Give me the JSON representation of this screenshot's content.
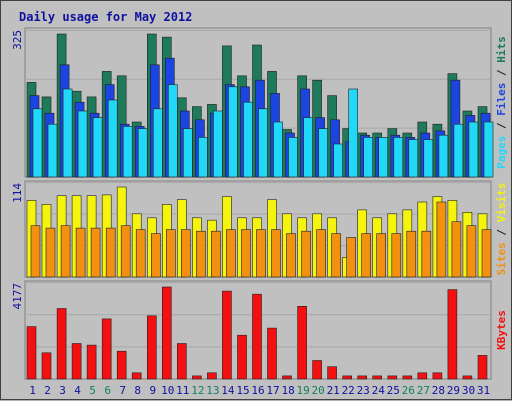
{
  "chart_data": {
    "type": "bar",
    "title": "Daily usage for May 2012",
    "categories": [
      "1",
      "2",
      "3",
      "4",
      "5",
      "6",
      "7",
      "8",
      "9",
      "10",
      "11",
      "12",
      "13",
      "14",
      "15",
      "16",
      "17",
      "18",
      "19",
      "20",
      "21",
      "22",
      "23",
      "24",
      "25",
      "26",
      "27",
      "28",
      "29",
      "30",
      "31"
    ],
    "weekend_days": [
      "5",
      "6",
      "12",
      "13",
      "19",
      "20",
      "26",
      "27"
    ],
    "panels": [
      {
        "name": "hits-files-pages",
        "ymax_label": "325",
        "ymax": 325,
        "legend": [
          "Pages",
          "Files",
          "Hits"
        ],
        "series": [
          {
            "name": "Hits",
            "color": "#1e7a5a",
            "values": [
              215,
              182,
              325,
              195,
              182,
              240,
              230,
              125,
              325,
              318,
              180,
              160,
              165,
              298,
              230,
              300,
              240,
              108,
              230,
              220,
              185,
              110,
              100,
              100,
              110,
              100,
              125,
              120,
              235,
              150,
              160
            ]
          },
          {
            "name": "Files",
            "color": "#1c44e0",
            "values": [
              185,
              145,
              255,
              170,
              145,
              210,
              120,
              115,
              255,
              270,
              150,
              130,
              145,
              210,
              205,
              220,
              190,
              100,
              200,
              135,
              130,
              80,
              95,
              90,
              95,
              90,
              100,
              105,
              220,
              140,
              145
            ]
          },
          {
            "name": "Pages",
            "color": "#22d8f8",
            "values": [
              155,
              120,
              200,
              150,
              135,
              175,
              115,
              110,
              155,
              210,
              110,
              90,
              150,
              205,
              170,
              155,
              125,
              90,
              135,
              110,
              75,
              200,
              90,
              90,
              90,
              85,
              85,
              95,
              120,
              125,
              125
            ]
          }
        ]
      },
      {
        "name": "visits-sites",
        "ymax_label": "114",
        "ymax": 114,
        "legend": [
          "Sites",
          "Visits"
        ],
        "series": [
          {
            "name": "Visits",
            "color": "#f4f40c",
            "values": [
              97,
              92,
              103,
              103,
              103,
              104,
              114,
              80,
              75,
              92,
              98,
              75,
              72,
              102,
              75,
              75,
              98,
              80,
              75,
              80,
              75,
              25,
              85,
              75,
              80,
              85,
              95,
              102,
              97,
              82,
              80
            ]
          },
          {
            "name": "Sites",
            "color": "#f49010",
            "values": [
              65,
              62,
              65,
              62,
              62,
              62,
              65,
              60,
              55,
              60,
              60,
              58,
              58,
              60,
              60,
              60,
              60,
              55,
              58,
              60,
              55,
              50,
              55,
              55,
              55,
              58,
              58,
              95,
              70,
              65,
              60
            ]
          }
        ]
      },
      {
        "name": "kbytes",
        "ymax_label": "4177",
        "ymax": 4177,
        "legend": [
          "KBytes"
        ],
        "series": [
          {
            "name": "KBytes",
            "color": "#f41010",
            "values": [
              2380,
              1190,
              3200,
              1610,
              1540,
              2730,
              1260,
              280,
              2870,
              4177,
              1610,
              140,
              280,
              3990,
              1990,
              3850,
              2310,
              140,
              3300,
              840,
              560,
              140,
              140,
              140,
              140,
              140,
              280,
              280,
              4060,
              140,
              1070
            ]
          }
        ]
      }
    ]
  },
  "colors": {
    "background": "#c0c0c0",
    "title": "#1010a0",
    "axis_text": "#1010a0",
    "weekend_text": "#108060",
    "grid": "#a8a8a8"
  }
}
